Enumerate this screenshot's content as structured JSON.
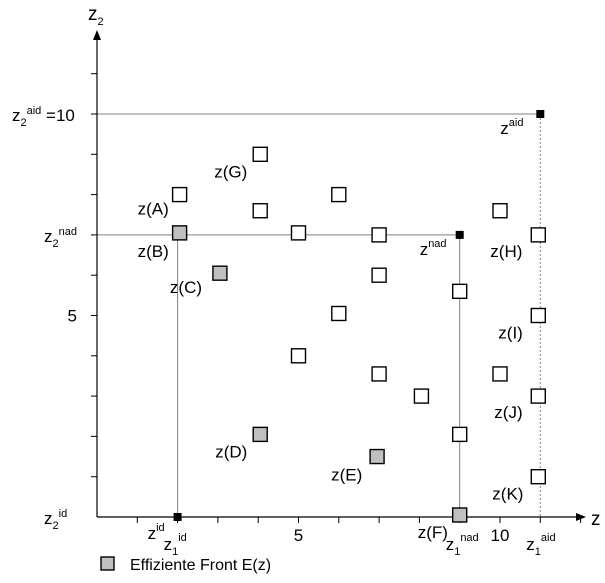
{
  "chart_data": {
    "type": "scatter",
    "axes": {
      "x": {
        "name": "z",
        "sub": "1",
        "tick_labels": [
          {
            "text": "5",
            "value": 5
          },
          {
            "text": "10",
            "value": 10
          }
        ]
      },
      "y": {
        "name": "z",
        "sub": "2",
        "tick_labels": [
          {
            "text": "5",
            "value": 5
          }
        ]
      },
      "xlim": [
        -2,
        12.5
      ],
      "ylim": [
        -1,
        12
      ]
    },
    "reference_points": [
      {
        "id": "id",
        "main": "z",
        "sup": "id",
        "x": 2,
        "y": 0
      },
      {
        "id": "nad",
        "main": "z",
        "sup": "nad",
        "x": 9,
        "y": 7
      },
      {
        "id": "aid",
        "main": "z",
        "sup": "aid",
        "x": 11,
        "y": 10
      }
    ],
    "axis_markers": {
      "x": [
        {
          "main": "z",
          "sub": "1",
          "sup": "id",
          "value": 2
        },
        {
          "main": "z",
          "sub": "1",
          "sup": "nad",
          "value": 9
        },
        {
          "main": "z",
          "sub": "1",
          "sup": "aid",
          "value": 11
        }
      ],
      "y": [
        {
          "main": "z",
          "sub": "2",
          "sup": "aid",
          "suffix": " =10",
          "value": 10
        },
        {
          "main": "z",
          "sub": "2",
          "sup": "nad",
          "suffix": "",
          "value": 7
        },
        {
          "main": "z",
          "sub": "2",
          "sup": "id",
          "suffix": "",
          "value": 0
        }
      ]
    },
    "points": [
      {
        "label": "z(A)",
        "x": 2.05,
        "y": 8.0,
        "efficient": false
      },
      {
        "label": "z(B)",
        "x": 2.05,
        "y": 7.05,
        "efficient": true
      },
      {
        "label": "z(C)",
        "x": 3.05,
        "y": 6.05,
        "efficient": true
      },
      {
        "label": "z(D)",
        "x": 4.05,
        "y": 2.05,
        "efficient": true
      },
      {
        "label": "z(E)",
        "x": 6.95,
        "y": 1.5,
        "efficient": true
      },
      {
        "label": "z(F)",
        "x": 9.0,
        "y": 0.05,
        "efficient": true
      },
      {
        "label": "z(G)",
        "x": 4.05,
        "y": 9.0,
        "efficient": false
      },
      {
        "label": "z(H)",
        "x": 10.95,
        "y": 7.0,
        "efficient": false
      },
      {
        "label": "z(I)",
        "x": 10.95,
        "y": 5.0,
        "efficient": false
      },
      {
        "label": "z(J)",
        "x": 10.95,
        "y": 3.0,
        "efficient": false
      },
      {
        "label": "z(K)",
        "x": 10.95,
        "y": 1.0,
        "efficient": false
      },
      {
        "label": "",
        "x": 4.05,
        "y": 7.6,
        "efficient": false
      },
      {
        "label": "",
        "x": 5.0,
        "y": 7.05,
        "efficient": false
      },
      {
        "label": "",
        "x": 6.0,
        "y": 8.0,
        "efficient": false
      },
      {
        "label": "",
        "x": 7.0,
        "y": 7.0,
        "efficient": false
      },
      {
        "label": "",
        "x": 7.0,
        "y": 6.0,
        "efficient": false
      },
      {
        "label": "",
        "x": 6.0,
        "y": 5.05,
        "efficient": false
      },
      {
        "label": "",
        "x": 5.0,
        "y": 4.0,
        "efficient": false
      },
      {
        "label": "",
        "x": 7.0,
        "y": 3.55,
        "efficient": false
      },
      {
        "label": "",
        "x": 8.05,
        "y": 3.0,
        "efficient": false
      },
      {
        "label": "",
        "x": 9.0,
        "y": 5.6,
        "efficient": false
      },
      {
        "label": "",
        "x": 9.0,
        "y": 2.05,
        "efficient": false
      },
      {
        "label": "",
        "x": 10.0,
        "y": 3.55,
        "efficient": false
      },
      {
        "label": "",
        "x": 10.0,
        "y": 7.6,
        "efficient": false
      }
    ],
    "legend": {
      "label": "Effiziente Front E(z)",
      "placement": "bottom-left"
    },
    "colors": {
      "efficient": "#c0c0c0",
      "dominated": "#ffffff",
      "stroke": "#000000",
      "guide": "#808080"
    }
  }
}
